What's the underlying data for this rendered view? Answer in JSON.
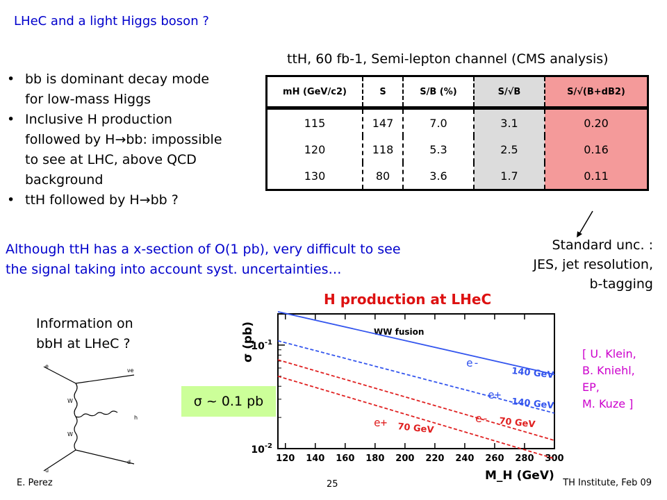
{
  "title": "LHeC and a light Higgs boson ?",
  "subtitle": "ttH, 60 fb-1, Semi-lepton channel (CMS analysis)",
  "bullets": [
    {
      "l1": "bb is dominant decay mode",
      "l2": "for low-mass Higgs"
    },
    {
      "l1": "Inclusive H production",
      "l2": "followed by H→bb: impossible",
      "l3": "to see at LHC, above QCD",
      "l4": "background"
    },
    {
      "l1": "ttH followed by H→bb ?"
    }
  ],
  "table": {
    "headers": [
      "mH (GeV/c2)",
      "S",
      "S/B (%)",
      "S/√B",
      "S/√(B+dB2)"
    ],
    "rows": [
      [
        "115",
        "147",
        "7.0",
        "3.1",
        "0.20"
      ],
      [
        "120",
        "118",
        "5.3",
        "2.5",
        "0.16"
      ],
      [
        "130",
        "80",
        "3.6",
        "1.7",
        "0.11"
      ]
    ],
    "colors": {
      "grey": "#dcdcdc",
      "pink": "#f49a9a"
    }
  },
  "note": {
    "line1": "Although ttH has a x-section of O(1 pb), very difficult to see",
    "line2": "the signal taking into account syst. uncertainties…"
  },
  "std_unc": {
    "line1": "Standard unc. :",
    "line2": "JES, jet resolution,",
    "line3": "b-tagging"
  },
  "info": {
    "line1": "Information on",
    "line2": "bbH at LHeC ?"
  },
  "sigma": "σ ~ 0.1 pb",
  "refs": {
    "line1": "[ U. Klein,",
    "line2": "B. Kniehl,",
    "line3": "EP,",
    "line4": "M. Kuze ]"
  },
  "footer": {
    "left": "E. Perez",
    "center": "25",
    "right": "TH Institute, Feb 09"
  },
  "feynman": {
    "labels": [
      "e",
      "νe",
      "W",
      "h",
      "W",
      "u",
      "d"
    ]
  },
  "chart_data": {
    "type": "line",
    "title": "H production at LHeC",
    "annotation": "WW fusion",
    "xlabel": "M_H (GeV)",
    "ylabel": "σ (pb)",
    "ylog": true,
    "xlim": [
      115,
      300
    ],
    "ylim": [
      0.01,
      0.2
    ],
    "x_ticks": [
      "120",
      "140",
      "160",
      "180",
      "200",
      "220",
      "240",
      "260",
      "280",
      "300"
    ],
    "y_ticks": [
      "10^-1",
      "10^-2"
    ],
    "series": [
      {
        "name": "140 GeV",
        "tag": "e-",
        "color": "#3355ee",
        "dash": "solid",
        "x": [
          115,
          300
        ],
        "y": [
          0.21,
          0.052
        ]
      },
      {
        "name": "140 GeV",
        "tag": "e+",
        "color": "#3355ee",
        "dash": "dashed",
        "x": [
          115,
          300
        ],
        "y": [
          0.11,
          0.022
        ]
      },
      {
        "name": "70 GeV",
        "tag": "e-",
        "color": "#e02020",
        "dash": "dashed",
        "x": [
          115,
          300
        ],
        "y": [
          0.072,
          0.012
        ]
      },
      {
        "name": "70 GeV",
        "tag": "e+",
        "color": "#e02020",
        "dash": "dashed",
        "x": [
          115,
          300
        ],
        "y": [
          0.05,
          0.008
        ]
      }
    ],
    "legend": [
      {
        "tag": "e-",
        "label": "140 GeV"
      },
      {
        "tag": "e+",
        "label": "140 GeV"
      },
      {
        "tag": "e-",
        "label": "70 GeV"
      },
      {
        "tag": "e+",
        "label": "70 GeV"
      }
    ]
  }
}
